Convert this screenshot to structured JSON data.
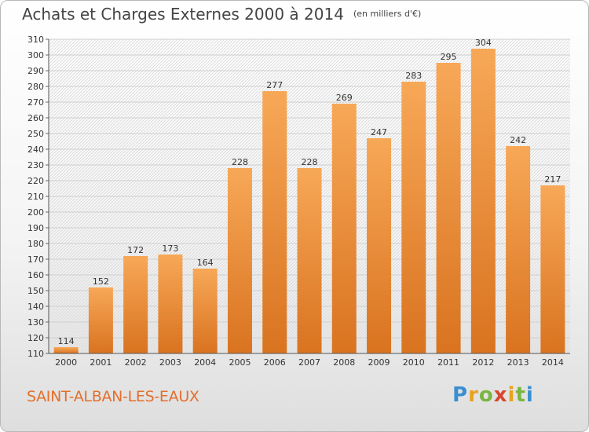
{
  "header": {
    "title": "Achats et Charges Externes 2000 à 2014",
    "unit": "(en milliers d'€)"
  },
  "footer": {
    "commune": "SAINT-ALBAN-LES-EAUX",
    "logo": "Proxiti"
  },
  "colors": {
    "bar_top": "#f7a857",
    "bar_bottom": "#d97320",
    "commune_text": "#e36f2c"
  },
  "chart_data": {
    "type": "bar",
    "title": "Achats et Charges Externes 2000 à 2014",
    "subtitle": "(en milliers d'€)",
    "categories": [
      "2000",
      "2001",
      "2002",
      "2003",
      "2004",
      "2005",
      "2006",
      "2007",
      "2008",
      "2009",
      "2010",
      "2011",
      "2012",
      "2013",
      "2014"
    ],
    "values": [
      114,
      152,
      172,
      173,
      164,
      228,
      277,
      228,
      269,
      247,
      283,
      295,
      304,
      242,
      217
    ],
    "ylim": [
      110,
      310
    ],
    "yticks": [
      110,
      120,
      130,
      140,
      150,
      160,
      170,
      180,
      190,
      200,
      210,
      220,
      230,
      240,
      250,
      260,
      270,
      280,
      290,
      300,
      310
    ],
    "grid": true,
    "data_labels": true
  }
}
